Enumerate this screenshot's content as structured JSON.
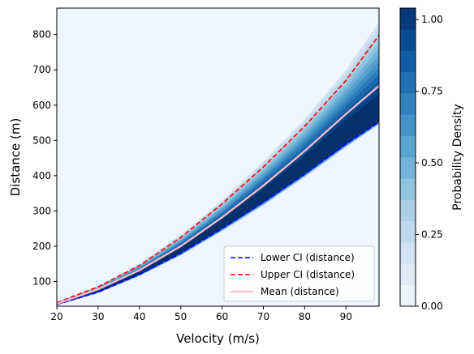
{
  "chart_data": {
    "type": "heatmap",
    "title": "",
    "xlabel": "Velocity (m/s)",
    "ylabel": "Distance (m)",
    "xlim": [
      20,
      98
    ],
    "ylim": [
      30,
      875
    ],
    "xticks": [
      20,
      30,
      40,
      50,
      60,
      70,
      80,
      90
    ],
    "yticks": [
      100,
      200,
      300,
      400,
      500,
      600,
      700,
      800
    ],
    "series": [
      {
        "name": "Lower CI (distance)",
        "style": "dashed",
        "color": "#0000ff",
        "x": [
          20,
          30,
          40,
          50,
          60,
          70,
          80,
          90,
          98
        ],
        "y": [
          35,
          70,
          120,
          180,
          250,
          325,
          405,
          490,
          552
        ]
      },
      {
        "name": "Upper CI (distance)",
        "style": "dashed",
        "color": "#ff0000",
        "x": [
          20,
          30,
          40,
          50,
          60,
          70,
          80,
          90,
          98
        ],
        "y": [
          40,
          85,
          145,
          225,
          320,
          425,
          540,
          670,
          798
        ]
      },
      {
        "name": "Mean (distance)",
        "style": "solid",
        "color": "#ffc0cb",
        "x": [
          20,
          30,
          40,
          50,
          60,
          70,
          80,
          90,
          98
        ],
        "y": [
          37,
          78,
          132,
          200,
          282,
          372,
          470,
          575,
          655
        ]
      }
    ],
    "density_band": {
      "x": [
        20,
        30,
        40,
        50,
        60,
        70,
        80,
        90,
        98
      ],
      "outer_low": [
        33,
        67,
        115,
        173,
        242,
        315,
        395,
        480,
        545
      ],
      "outer_high": [
        41,
        87,
        150,
        232,
        330,
        440,
        560,
        700,
        835
      ],
      "peak_low": [
        35,
        71,
        121,
        182,
        252,
        327,
        407,
        492,
        555
      ],
      "peak_high": [
        37,
        75,
        128,
        194,
        272,
        357,
        447,
        545,
        612
      ]
    },
    "colorbar": {
      "label": "Probability Density",
      "ticks": [
        0.0,
        0.25,
        0.5,
        0.75,
        1.0
      ],
      "tick_labels": [
        "0.00",
        "0.25",
        "0.50",
        "0.75",
        "1.00"
      ],
      "range": [
        0,
        1.04
      ],
      "levels": 14,
      "colormap": "Blues"
    },
    "legend": {
      "position": "lower-right",
      "entries": [
        "Lower CI (distance)",
        "Upper CI (distance)",
        "Mean (distance)"
      ]
    },
    "background_color": "#f0f6ff"
  }
}
